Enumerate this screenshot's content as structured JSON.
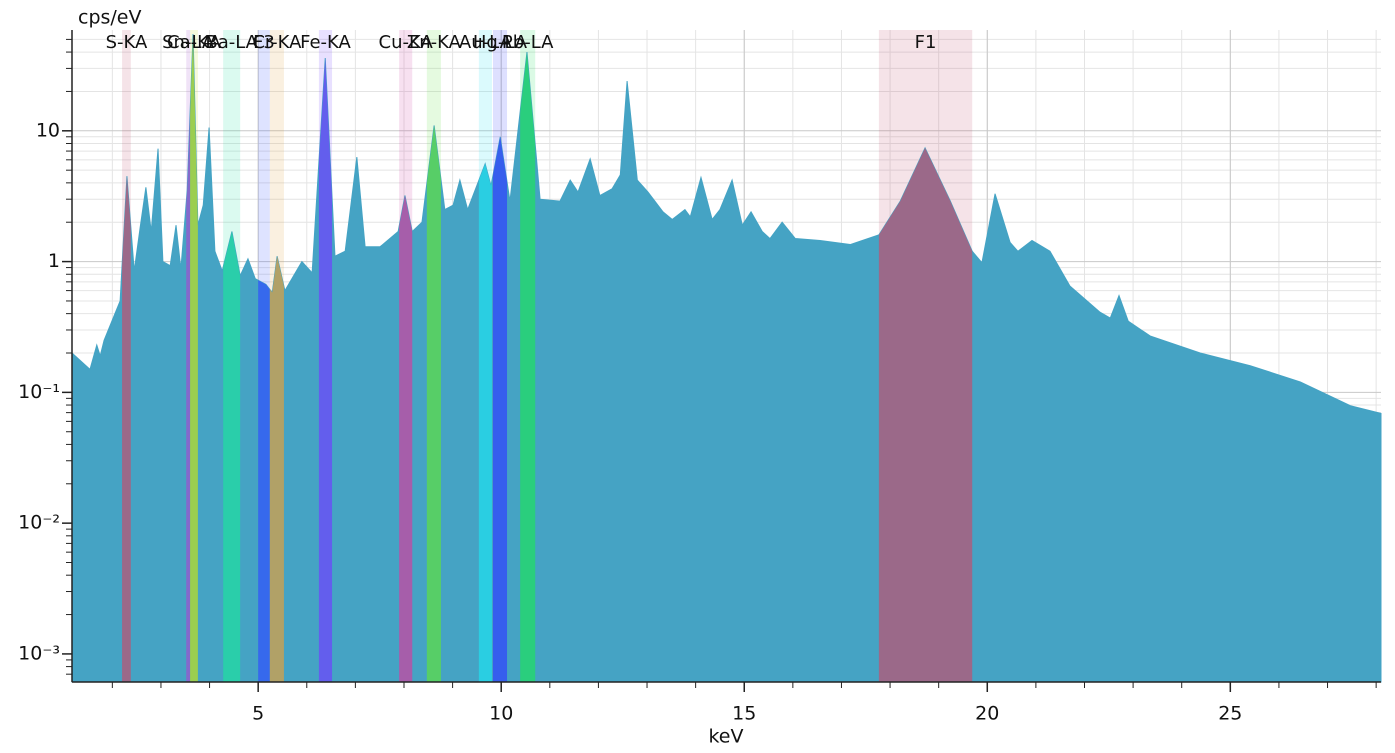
{
  "chart_data": {
    "type": "area",
    "y_label": "cps/eV",
    "x_label": "keV",
    "ylog": true,
    "grid": true,
    "minor_grid": true,
    "xlim": [
      1.17,
      28.1
    ],
    "ylim": [
      0.00061,
      59
    ],
    "xticks": [
      5,
      10,
      15,
      20,
      25
    ],
    "yticks": [
      {
        "value": 0.001,
        "label": "10⁻³"
      },
      {
        "value": 0.01,
        "label": "10⁻²"
      },
      {
        "value": 0.1,
        "label": "10⁻¹"
      },
      1,
      10
    ],
    "color": "#45a3c4",
    "x": [
      1.17,
      1.54,
      1.68,
      1.75,
      1.83,
      2.16,
      2.3,
      2.45,
      2.57,
      2.69,
      2.8,
      2.94,
      3.04,
      3.19,
      3.31,
      3.41,
      3.54,
      3.66,
      3.76,
      3.87,
      3.99,
      4.11,
      4.26,
      4.46,
      4.63,
      4.79,
      4.94,
      5.16,
      5.29,
      5.39,
      5.55,
      5.9,
      6.11,
      6.38,
      6.58,
      6.79,
      7.03,
      7.2,
      7.51,
      7.88,
      8.02,
      8.17,
      8.37,
      8.62,
      8.84,
      9.01,
      9.15,
      9.31,
      9.67,
      9.79,
      9.98,
      10.18,
      10.53,
      10.8,
      11.21,
      11.42,
      11.58,
      11.83,
      12.03,
      12.28,
      12.45,
      12.59,
      12.8,
      13.02,
      13.33,
      13.52,
      13.78,
      13.89,
      14.11,
      14.34,
      14.5,
      14.75,
      14.96,
      15.14,
      15.37,
      15.53,
      15.78,
      16.05,
      16.56,
      17.18,
      17.77,
      18.21,
      18.72,
      19.24,
      19.69,
      19.89,
      20.16,
      20.47,
      20.63,
      20.92,
      21.29,
      21.7,
      22.32,
      22.53,
      22.71,
      22.9,
      23.35,
      24.38,
      25.41,
      26.44,
      27.47,
      28.1
    ],
    "values": [
      0.2,
      0.15,
      0.23,
      0.19,
      0.25,
      0.5,
      4.5,
      0.85,
      1.8,
      3.7,
      1.7,
      7.3,
      1.0,
      0.93,
      1.9,
      0.88,
      3.5,
      55,
      1.9,
      2.7,
      10.6,
      1.2,
      0.85,
      1.7,
      0.78,
      1.05,
      0.74,
      0.67,
      0.58,
      1.1,
      0.6,
      1.0,
      0.82,
      36,
      1.1,
      1.2,
      6.3,
      1.3,
      1.3,
      1.7,
      3.2,
      1.7,
      2.0,
      11,
      2.5,
      2.7,
      4.2,
      2.5,
      5.6,
      3.8,
      9.0,
      2.9,
      40,
      3.0,
      2.9,
      4.2,
      3.4,
      6.1,
      3.2,
      3.6,
      4.6,
      24,
      4.2,
      3.4,
      2.4,
      2.1,
      2.5,
      2.2,
      4.4,
      2.1,
      2.5,
      4.2,
      1.9,
      2.4,
      1.7,
      1.5,
      2.0,
      1.5,
      1.45,
      1.35,
      1.6,
      2.9,
      7.4,
      2.9,
      1.2,
      0.98,
      3.3,
      1.4,
      1.2,
      1.45,
      1.2,
      0.65,
      0.41,
      0.37,
      0.55,
      0.35,
      0.27,
      0.2,
      0.16,
      0.12,
      0.079,
      0.069
    ],
    "regions": [
      {
        "name": "S-KA",
        "range": [
          2.2,
          2.38
        ],
        "color": "#c05070"
      },
      {
        "name": "Sn-LA",
        "range": [
          3.52,
          3.6
        ],
        "color": "#a050d0"
      },
      {
        "name": "Ca-KA",
        "range": [
          3.6,
          3.76
        ],
        "color": "#c0e020"
      },
      {
        "name": "Ba-LA",
        "range": [
          4.28,
          4.63
        ],
        "color": "#20e0a0"
      },
      {
        "name": "F3",
        "range": [
          5.0,
          5.24
        ],
        "color": "#3050ff"
      },
      {
        "name": "Cr-KA",
        "range": [
          5.24,
          5.53
        ],
        "color": "#e0a040"
      },
      {
        "name": "Fe-KA",
        "range": [
          6.25,
          6.52
        ],
        "color": "#7040ff"
      },
      {
        "name": "Cu-KA",
        "range": [
          7.9,
          8.17
        ],
        "color": "#d040a0"
      },
      {
        "name": "Zn-KA",
        "range": [
          8.47,
          8.76
        ],
        "color": "#60e040"
      },
      {
        "name": "Au-LA",
        "range": [
          9.54,
          9.81
        ],
        "color": "#20e0f0"
      },
      {
        "name": "Hg-LA",
        "range": [
          9.83,
          10.12
        ],
        "color": "#3040ff"
      },
      {
        "name": "Pb-LA",
        "range": [
          10.39,
          10.7
        ],
        "color": "#20e060"
      },
      {
        "name": "F1",
        "range": [
          17.77,
          19.69
        ],
        "color": "#c05070"
      }
    ]
  }
}
